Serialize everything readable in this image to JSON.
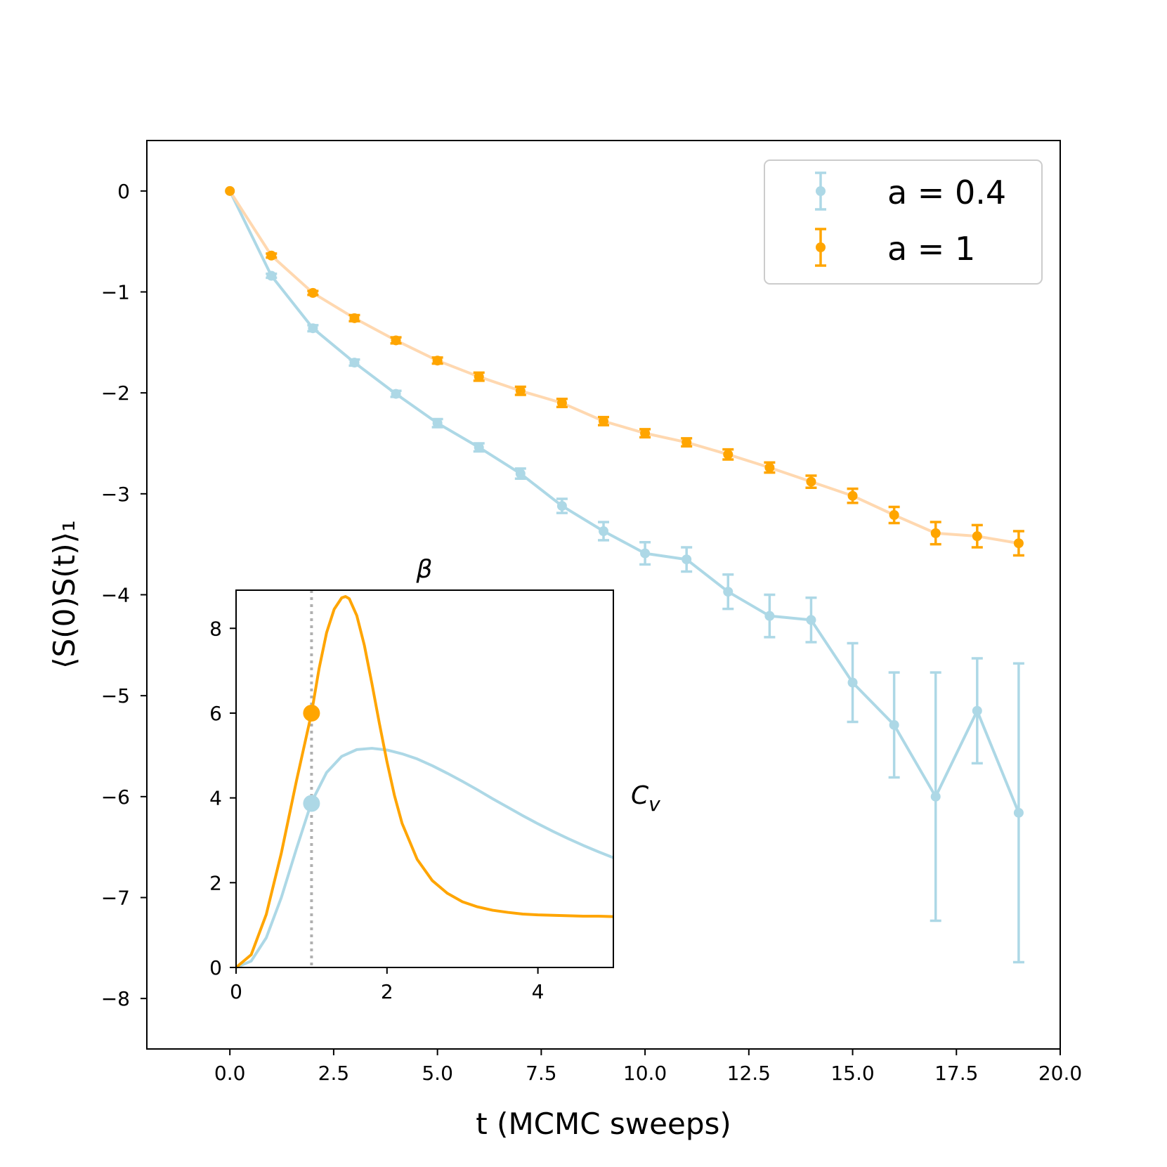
{
  "chart_data": {
    "main": {
      "type": "line",
      "xlabel": "t (MCMC sweeps)",
      "ylabel": "⟨S(0)S(t)⟩₁",
      "xlim": [
        -2,
        20
      ],
      "ylim": [
        -8.5,
        0.5
      ],
      "xticks": [
        0,
        2.5,
        5,
        7.5,
        10,
        12.5,
        15,
        17.5,
        20
      ],
      "xtick_labels": [
        "0.0",
        "2.5",
        "5.0",
        "7.5",
        "10.0",
        "12.5",
        "15.0",
        "17.5",
        "20.0"
      ],
      "yticks": [
        0,
        -1,
        -2,
        -3,
        -4,
        -5,
        -6,
        -7,
        -8
      ],
      "ytick_labels": [
        "0",
        "−1",
        "−2",
        "−3",
        "−4",
        "−5",
        "−6",
        "−7",
        "−8"
      ],
      "legend_position": "top-right",
      "series": [
        {
          "name": "a = 0.4",
          "color": "#add8e6",
          "x": [
            0,
            1,
            2,
            3,
            4,
            5,
            6,
            7,
            8,
            9,
            10,
            11,
            12,
            13,
            14,
            15,
            16,
            17,
            18,
            19
          ],
          "y": [
            0,
            -0.84,
            -1.36,
            -1.7,
            -2.01,
            -2.3,
            -2.54,
            -2.8,
            -3.12,
            -3.37,
            -3.59,
            -3.65,
            -3.97,
            -4.21,
            -4.25,
            -4.87,
            -5.29,
            -6.0,
            -5.15,
            -6.16
          ],
          "err": [
            0,
            0.02,
            0.03,
            0.03,
            0.03,
            0.04,
            0.04,
            0.05,
            0.07,
            0.09,
            0.11,
            0.12,
            0.17,
            0.21,
            0.22,
            0.39,
            0.52,
            1.23,
            0.52,
            1.48
          ]
        },
        {
          "name": "a = 1",
          "color": "#ffa500",
          "line_color": "#ffd8b0",
          "x": [
            0,
            1,
            2,
            3,
            4,
            5,
            6,
            7,
            8,
            9,
            10,
            11,
            12,
            13,
            14,
            15,
            16,
            17,
            18,
            19
          ],
          "y": [
            0,
            -0.64,
            -1.01,
            -1.26,
            -1.48,
            -1.68,
            -1.84,
            -1.98,
            -2.1,
            -2.28,
            -2.4,
            -2.49,
            -2.61,
            -2.74,
            -2.88,
            -3.02,
            -3.21,
            -3.39,
            -3.42,
            -3.49
          ],
          "err": [
            0,
            0.02,
            0.02,
            0.03,
            0.03,
            0.03,
            0.04,
            0.04,
            0.04,
            0.04,
            0.04,
            0.04,
            0.05,
            0.05,
            0.06,
            0.07,
            0.08,
            0.11,
            0.11,
            0.12
          ]
        }
      ]
    },
    "inset": {
      "type": "line",
      "xlabel": "β",
      "ylabel": "C_v",
      "xlim": [
        0,
        5
      ],
      "ylim": [
        0,
        8.9
      ],
      "xticks": [
        0,
        2,
        4
      ],
      "xtick_labels": [
        "0",
        "2",
        "4"
      ],
      "yticks": [
        0,
        2,
        4,
        6,
        8
      ],
      "ytick_labels": [
        "0",
        "2",
        "4",
        "6",
        "8"
      ],
      "vline_x": 1.0,
      "vline_color": "#b0b0b0",
      "series": [
        {
          "name": "a = 0.4",
          "color": "#add8e6",
          "x": [
            0,
            0.2,
            0.4,
            0.6,
            0.8,
            1.0,
            1.2,
            1.4,
            1.6,
            1.8,
            2.0,
            2.2,
            2.4,
            2.6,
            2.8,
            3.0,
            3.2,
            3.4,
            3.6,
            3.8,
            4.0,
            4.2,
            4.4,
            4.6,
            4.8,
            5.0
          ],
          "y": [
            0,
            0.15,
            0.7,
            1.65,
            2.8,
            3.9,
            4.6,
            4.98,
            5.14,
            5.17,
            5.13,
            5.04,
            4.92,
            4.76,
            4.58,
            4.39,
            4.19,
            3.98,
            3.78,
            3.58,
            3.39,
            3.21,
            3.04,
            2.88,
            2.73,
            2.59
          ],
          "marker": {
            "x": 1.0,
            "y": 3.87
          }
        },
        {
          "name": "a = 1",
          "color": "#ffa500",
          "x": [
            0,
            0.2,
            0.4,
            0.6,
            0.8,
            1.0,
            1.1,
            1.2,
            1.3,
            1.4,
            1.45,
            1.5,
            1.6,
            1.7,
            1.8,
            1.9,
            2.0,
            2.1,
            2.2,
            2.4,
            2.6,
            2.8,
            3.0,
            3.2,
            3.4,
            3.6,
            3.8,
            4.0,
            4.2,
            4.4,
            4.6,
            4.8,
            5.0
          ],
          "y": [
            0,
            0.3,
            1.25,
            2.7,
            4.4,
            6.0,
            7.05,
            7.9,
            8.45,
            8.72,
            8.75,
            8.7,
            8.3,
            7.6,
            6.7,
            5.75,
            4.85,
            4.05,
            3.4,
            2.55,
            2.05,
            1.75,
            1.55,
            1.43,
            1.35,
            1.3,
            1.26,
            1.24,
            1.23,
            1.22,
            1.21,
            1.21,
            1.2
          ],
          "marker": {
            "x": 1.0,
            "y": 6.0
          }
        }
      ]
    }
  }
}
